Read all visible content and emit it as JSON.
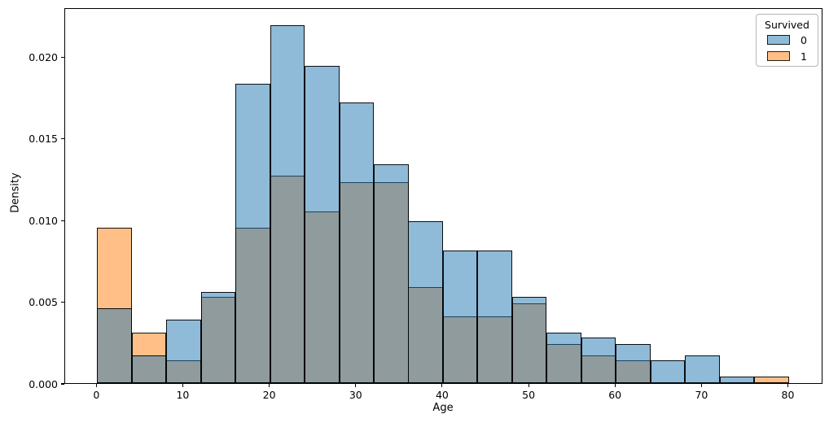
{
  "chart_data": {
    "type": "bar",
    "subtype": "overlapping-histogram",
    "title": "",
    "xlabel": "Age",
    "ylabel": "Density",
    "xlim": [
      -3.7,
      84
    ],
    "ylim": [
      0,
      0.023
    ],
    "grid": false,
    "bin_width": 4,
    "bin_edges": [
      0,
      4,
      8,
      12,
      16,
      20,
      24,
      28,
      32,
      36,
      40,
      44,
      48,
      52,
      56,
      60,
      64,
      68,
      72,
      76,
      80
    ],
    "x_tick_values": [
      0,
      10,
      20,
      30,
      40,
      50,
      60,
      70,
      80
    ],
    "x_tick_labels": [
      "0",
      "10",
      "20",
      "30",
      "40",
      "50",
      "60",
      "70",
      "80"
    ],
    "y_tick_values": [
      0.0,
      0.005,
      0.01,
      0.015,
      0.02
    ],
    "y_tick_labels": [
      "0.000",
      "0.005",
      "0.010",
      "0.015",
      "0.020"
    ],
    "series": [
      {
        "name": "0",
        "base_color": "#1f77b4",
        "fill_rgba": "rgba(31,119,180,0.5)",
        "fill_on_white_hex": "#8fbbd9",
        "densities": [
          0.0046,
          0.0017,
          0.0039,
          0.0056,
          0.0183,
          0.0219,
          0.0194,
          0.0172,
          0.0134,
          0.0099,
          0.0081,
          0.0081,
          0.0053,
          0.0031,
          0.0028,
          0.0024,
          0.0014,
          0.0017,
          0.0004,
          0
        ]
      },
      {
        "name": "1",
        "base_color": "#ff7f0e",
        "fill_rgba": "rgba(255,127,14,0.5)",
        "fill_on_white_hex": "#ffbf86",
        "densities": [
          0.0095,
          0.0031,
          0.0014,
          0.0053,
          0.0095,
          0.0127,
          0.0105,
          0.0123,
          0.0123,
          0.0059,
          0.0041,
          0.0041,
          0.0049,
          0.0024,
          0.0017,
          0.0014,
          0,
          0,
          0,
          0.0004
        ]
      }
    ],
    "overlap_color_hex": "#8f9b9d",
    "edge_color": "#000000",
    "fill_alpha": 0.5,
    "legend": {
      "title": "Survived",
      "position": "upper right",
      "entries": [
        {
          "label": "0",
          "fill_rgba": "rgba(31,119,180,0.5)"
        },
        {
          "label": "1",
          "fill_rgba": "rgba(255,127,14,0.5)"
        }
      ]
    }
  }
}
